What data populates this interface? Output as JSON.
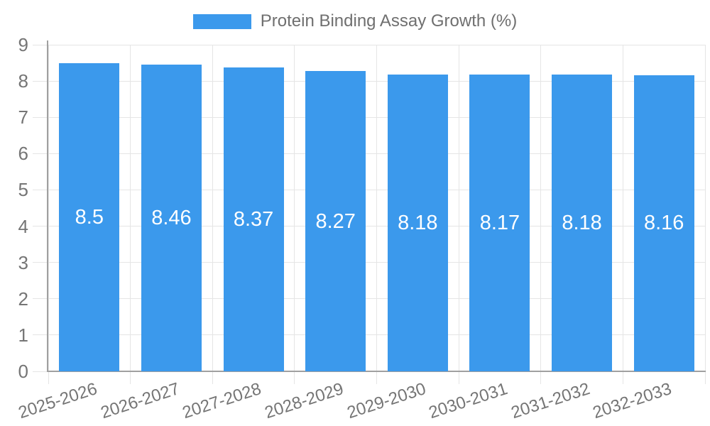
{
  "legend": {
    "position": "top",
    "label": "Protein Binding Assay Growth (%)"
  },
  "colors": {
    "bar": "#3B99EC",
    "grid": "#E5E5E5",
    "axis": "#A0A0A0",
    "tick_text": "#757575",
    "legend_text": "#6F6F6F",
    "bar_label": "#FFFFFF",
    "background": "#FFFFFF"
  },
  "chart_data": {
    "type": "bar",
    "title": "Protein Binding Assay Growth (%)",
    "categories": [
      "2025-2026",
      "2026-2027",
      "2027-2028",
      "2028-2029",
      "2029-2030",
      "2030-2031",
      "2031-2032",
      "2032-2033"
    ],
    "values": [
      8.5,
      8.46,
      8.37,
      8.27,
      8.18,
      8.17,
      8.18,
      8.16
    ],
    "xlabel": "",
    "ylabel": "",
    "ylim": [
      0,
      9
    ],
    "ytick_step": 1,
    "yticks": [
      0,
      1,
      2,
      3,
      4,
      5,
      6,
      7,
      8,
      9
    ],
    "grid": true,
    "legend_position": "top",
    "bar_value_labels_shown": true
  }
}
